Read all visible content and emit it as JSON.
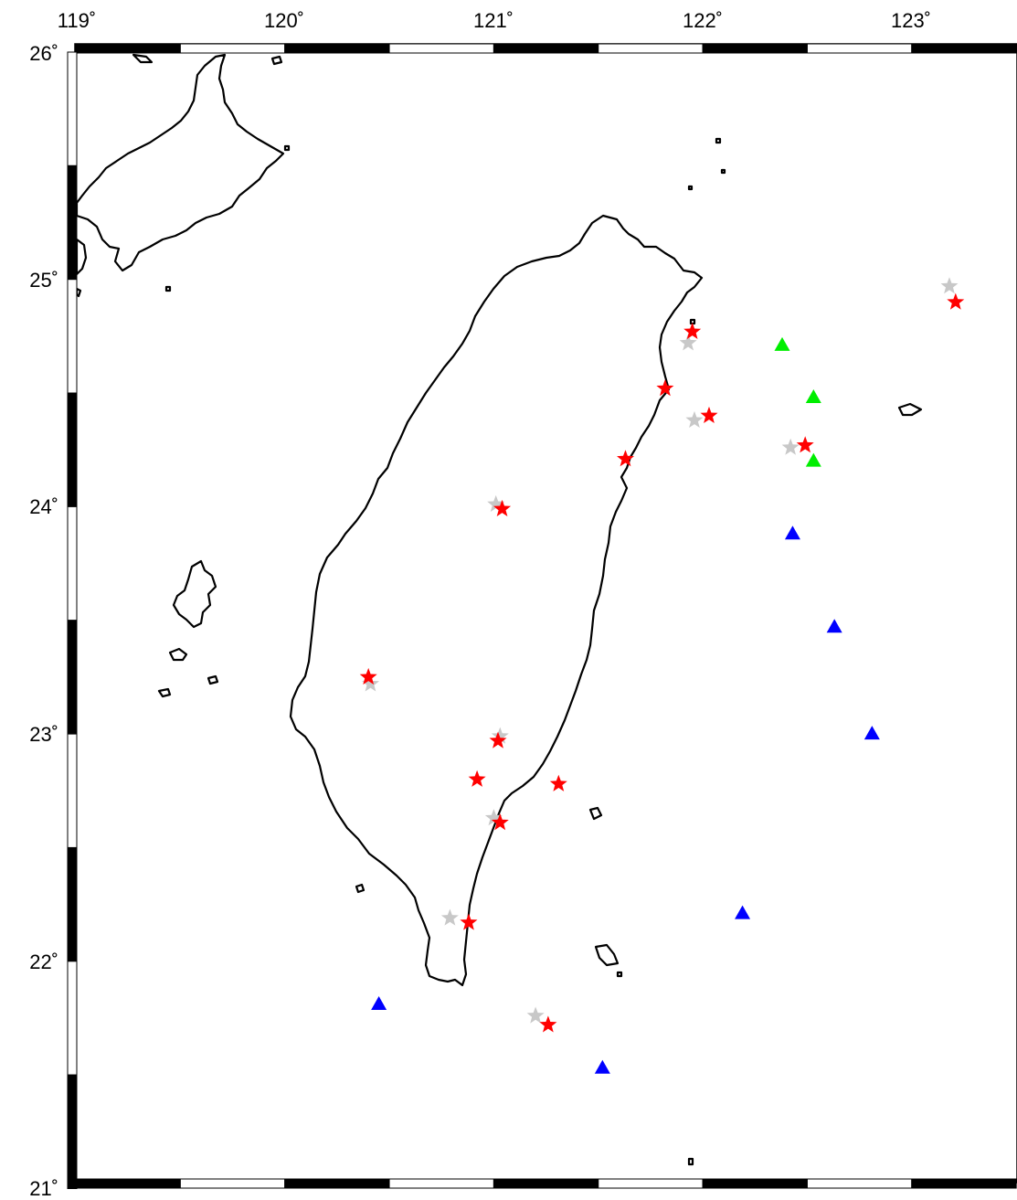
{
  "map": {
    "lon_range": [
      119,
      123.5
    ],
    "lat_range": [
      21,
      26
    ],
    "frame": "checkerboard",
    "lon_ticks": [
      {
        "value": 119,
        "label": "119˚"
      },
      {
        "value": 120,
        "label": "120˚"
      },
      {
        "value": 121,
        "label": "121˚"
      },
      {
        "value": 122,
        "label": "122˚"
      },
      {
        "value": 123,
        "label": "123˚"
      }
    ],
    "lat_ticks": [
      {
        "value": 26,
        "label": "26˚"
      },
      {
        "value": 25,
        "label": "25˚"
      },
      {
        "value": 24,
        "label": "24˚"
      },
      {
        "value": 23,
        "label": "23˚"
      },
      {
        "value": 22,
        "label": "22˚"
      },
      {
        "value": 21,
        "label": "21˚"
      }
    ],
    "colors": {
      "coastline": "#000000",
      "event_red": "#ff0000",
      "event_gray": "#c8c8c8",
      "station_green": "#00ee00",
      "station_blue": "#0000ff"
    }
  },
  "markers": {
    "gray_stars": [
      [
        123.18,
        24.97
      ],
      [
        121.93,
        24.72
      ],
      [
        121.96,
        24.38
      ],
      [
        122.42,
        24.26
      ],
      [
        121.01,
        24.01
      ],
      [
        120.41,
        23.22
      ],
      [
        121.03,
        22.99
      ],
      [
        121.0,
        22.63
      ],
      [
        120.79,
        22.19
      ],
      [
        121.2,
        21.76
      ]
    ],
    "red_stars": [
      [
        123.21,
        24.9
      ],
      [
        121.95,
        24.77
      ],
      [
        121.82,
        24.52
      ],
      [
        122.03,
        24.4
      ],
      [
        122.49,
        24.27
      ],
      [
        121.63,
        24.21
      ],
      [
        121.04,
        23.99
      ],
      [
        120.4,
        23.25
      ],
      [
        121.02,
        22.97
      ],
      [
        120.92,
        22.8
      ],
      [
        121.31,
        22.78
      ],
      [
        121.03,
        22.61
      ],
      [
        120.88,
        22.17
      ],
      [
        121.26,
        21.72
      ]
    ],
    "green_triangles": [
      [
        122.38,
        24.71
      ],
      [
        122.53,
        24.48
      ],
      [
        122.53,
        24.2
      ]
    ],
    "blue_triangles": [
      [
        122.43,
        23.88
      ],
      [
        122.63,
        23.47
      ],
      [
        122.81,
        23.0
      ],
      [
        122.19,
        22.21
      ],
      [
        120.45,
        21.81
      ],
      [
        121.52,
        21.53
      ]
    ]
  }
}
